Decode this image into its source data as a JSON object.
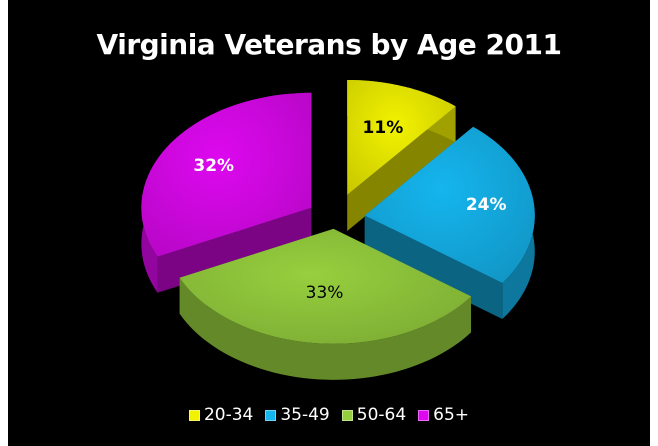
{
  "chart_data": {
    "type": "pie",
    "title": "Virginia Veterans by Age 2011",
    "categories": [
      "20-34",
      "35-49",
      "50-64",
      "65+"
    ],
    "values": [
      11,
      24,
      33,
      32
    ],
    "labels": [
      "11%",
      "24%",
      "33%",
      "32%"
    ],
    "colors": [
      "#f2f200",
      "#15b5ee",
      "#96cf3e",
      "#dd08ef"
    ],
    "label_colors": [
      "#000000",
      "#ffffff",
      "#000000",
      "#ffffff"
    ],
    "style": "3d-exploded",
    "legend_position": "bottom",
    "background": "#000000"
  }
}
